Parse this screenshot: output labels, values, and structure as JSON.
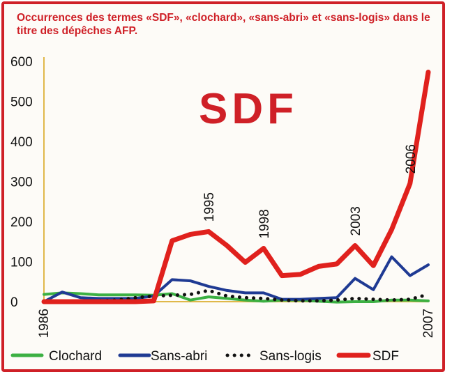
{
  "title": "Occurrences des termes «SDF», «clochard», «sans-abri» et «sans-logis» dans le titre des dépêches AFP.",
  "chart_data": {
    "type": "line",
    "title": "Occurrences des termes «SDF», «clochard», «sans-abri» et «sans-logis» dans le titre des dépêches AFP.",
    "watermark": "SDF",
    "ylim": [
      0,
      600
    ],
    "yticks": [
      "0",
      "100",
      "200",
      "300",
      "400",
      "500",
      "600"
    ],
    "xlim": [
      1986,
      2007
    ],
    "x_tick_labels": [
      "1986",
      "2007"
    ],
    "x": [
      1986,
      1987,
      1988,
      1989,
      1990,
      1991,
      1992,
      1993,
      1994,
      1995,
      1996,
      1997,
      1998,
      1999,
      2000,
      2001,
      2002,
      2003,
      2004,
      2005,
      2006,
      2007
    ],
    "annotations": [
      {
        "label": "1995",
        "x": 1995,
        "y": 175
      },
      {
        "label": "1998",
        "x": 1998,
        "y": 133
      },
      {
        "label": "2003",
        "x": 2003,
        "y": 140
      },
      {
        "label": "2006",
        "x": 2006,
        "y": 295
      }
    ],
    "legend_position": "bottom",
    "series": [
      {
        "name": "Clochard",
        "color": "#3cb043",
        "style": "solid",
        "values": [
          18,
          22,
          20,
          17,
          17,
          17,
          16,
          20,
          4,
          12,
          8,
          4,
          1,
          4,
          4,
          1,
          -1,
          0,
          0,
          4,
          4,
          2
        ]
      },
      {
        "name": "Sans-abri",
        "color": "#1f3a93",
        "style": "solid",
        "values": [
          0,
          24,
          10,
          8,
          8,
          8,
          14,
          55,
          52,
          38,
          28,
          22,
          22,
          6,
          6,
          8,
          10,
          58,
          30,
          112,
          65,
          92
        ]
      },
      {
        "name": "Sans-logis",
        "color": "#111111",
        "style": "dotted",
        "values": [
          0,
          0,
          -2,
          2,
          4,
          10,
          14,
          16,
          18,
          28,
          14,
          10,
          8,
          4,
          2,
          2,
          4,
          8,
          6,
          4,
          6,
          18
        ]
      },
      {
        "name": "SDF",
        "color": "#e0211d",
        "style": "solid",
        "values": [
          0,
          0,
          0,
          0,
          0,
          0,
          2,
          152,
          168,
          175,
          140,
          98,
          133,
          65,
          68,
          88,
          94,
          140,
          90,
          180,
          295,
          573
        ]
      }
    ]
  }
}
